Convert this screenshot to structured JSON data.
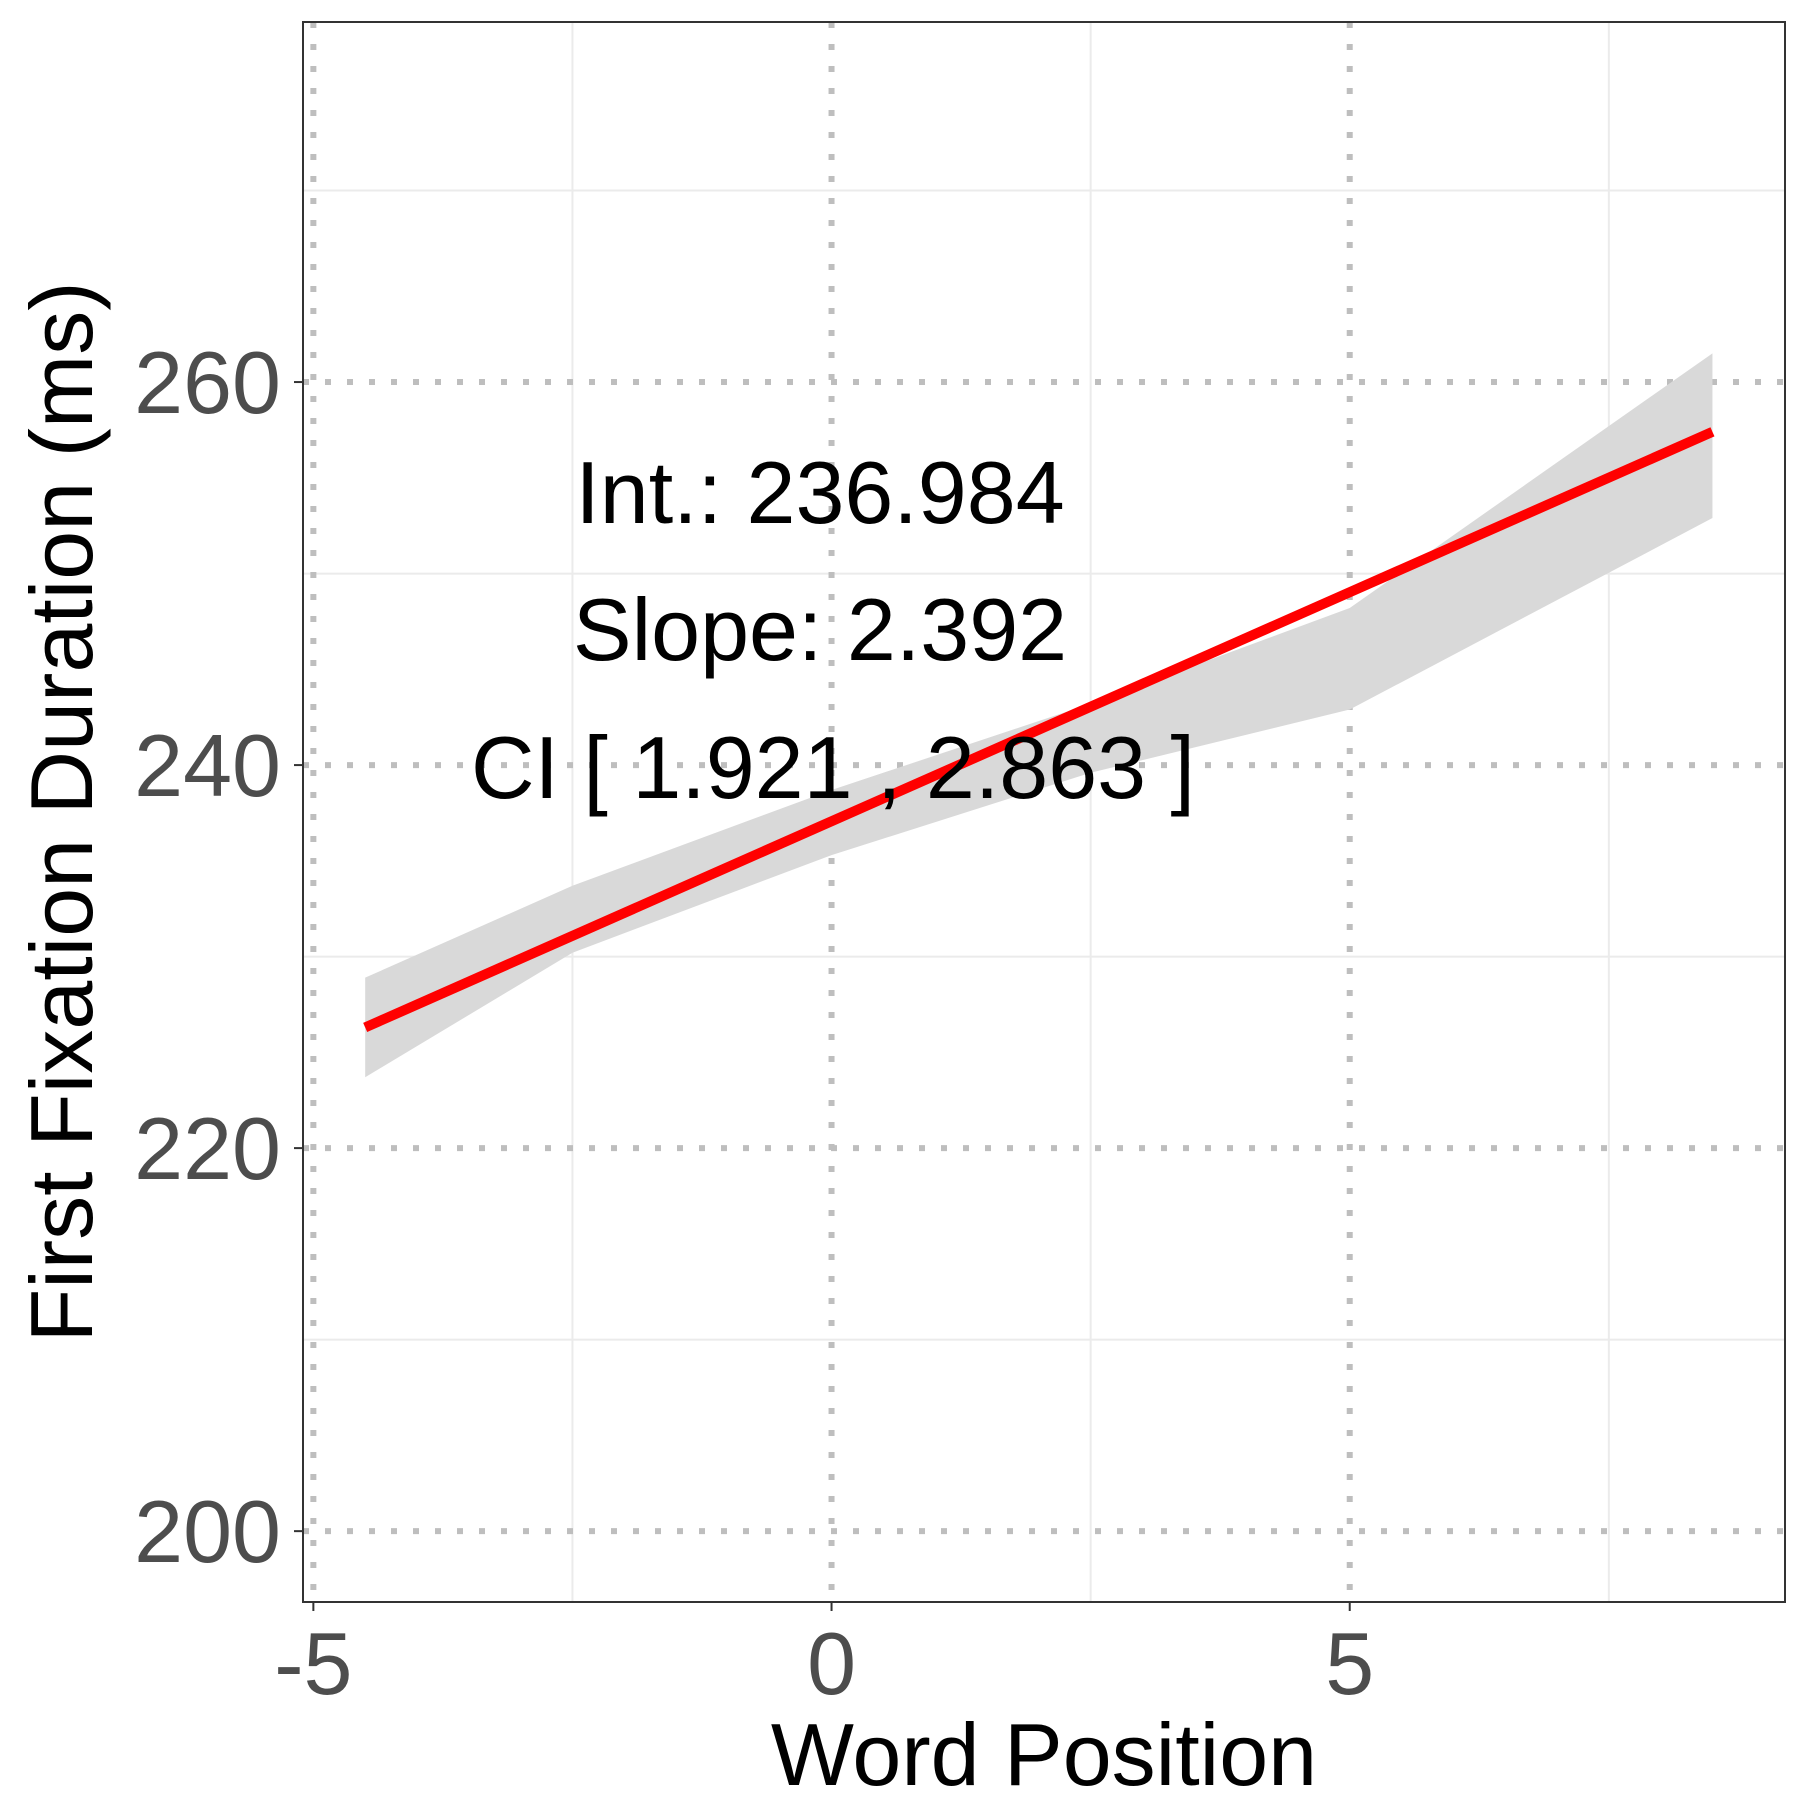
{
  "chart_data": {
    "type": "line",
    "xlabel": "Word Position",
    "ylabel": "First Fixation Duration (ms)",
    "xlim": [
      -5.1,
      9.2
    ],
    "ylim": [
      196.3,
      278.8
    ],
    "x_ticks": [
      -5,
      0,
      5
    ],
    "x_tick_labels": [
      "-5",
      "0",
      "5"
    ],
    "y_ticks": [
      200,
      220,
      240,
      260
    ],
    "y_tick_labels": [
      "200",
      "220",
      "240",
      "260"
    ],
    "x_minor_gridlines": [
      -2.5,
      2.5,
      7.5
    ],
    "y_minor_gridlines": [
      210,
      230,
      250,
      270
    ],
    "grid": true,
    "legend": "none",
    "series": [
      {
        "type": "line",
        "color": "#ff0000",
        "x": [
          -4.5,
          8.5
        ],
        "y": [
          226.3,
          257.4
        ]
      }
    ],
    "confidence_band": {
      "color": "#d9d9d9",
      "x": [
        -4.5,
        -2.5,
        0,
        2.5,
        5,
        8.5
      ],
      "lower": [
        223.7,
        230.2,
        235.3,
        239.6,
        242.9,
        252.9
      ],
      "upper": [
        228.9,
        233.7,
        238.7,
        243.2,
        248.2,
        261.5
      ]
    },
    "annotations": [
      "Int.: 236.984",
      "Slope: 2.392",
      "CI [ 1.921 , 2.863 ]"
    ]
  },
  "colors": {
    "line": "#ff0000",
    "band": "#d9d9d9",
    "major_grid": "#bebebe",
    "minor_grid": "#ebebeb",
    "panel_border": "#333333",
    "tick_text": "#4d4d4d"
  }
}
